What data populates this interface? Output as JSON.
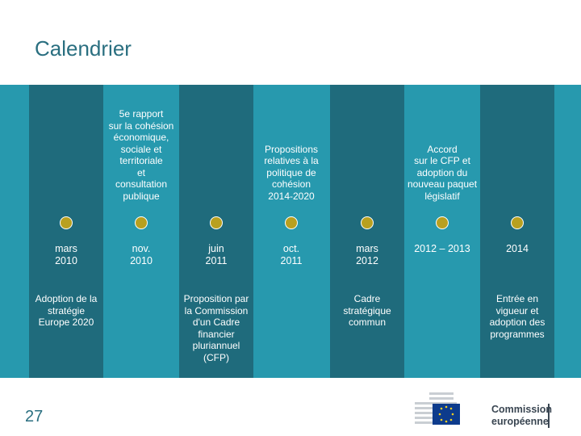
{
  "title": "Calendrier",
  "page_number": "27",
  "logo": {
    "line1": "Commission",
    "line2": "européenne"
  },
  "colors": {
    "band": "#2799ae",
    "dark_column": "#1f6b7c",
    "milestone": "#b8a020",
    "title": "#2a6f80"
  },
  "timeline": [
    {
      "date": [
        "mars",
        "2010"
      ],
      "top": [],
      "bottom": [
        "Adoption de la",
        "stratégie",
        "Europe 2020"
      ]
    },
    {
      "date": [
        "nov.",
        "2010"
      ],
      "top": [
        "5e rapport",
        "sur la cohésion",
        "économique,",
        "sociale et",
        "territoriale",
        "et",
        "consultation",
        "publique"
      ],
      "bottom": []
    },
    {
      "date": [
        "juin",
        "2011"
      ],
      "top": [],
      "bottom": [
        "Proposition par",
        "la Commission",
        "d'un Cadre",
        "financier",
        "pluriannuel",
        "(CFP)"
      ]
    },
    {
      "date": [
        "oct.",
        "2011"
      ],
      "top": [
        "Propositions",
        "relatives à la",
        "politique de",
        "cohésion",
        "2014-2020"
      ],
      "bottom": []
    },
    {
      "date": [
        "mars",
        "2012"
      ],
      "top": [],
      "bottom": [
        "Cadre",
        "stratégique",
        "commun"
      ]
    },
    {
      "date": [
        "2012 – 2013"
      ],
      "top": [
        "Accord",
        "sur le CFP et",
        "adoption du",
        "nouveau paquet",
        "législatif"
      ],
      "bottom": []
    },
    {
      "date": [
        "2014"
      ],
      "top": [],
      "bottom": [
        "Entrée en",
        "vigueur et",
        "adoption des",
        "programmes"
      ]
    }
  ]
}
